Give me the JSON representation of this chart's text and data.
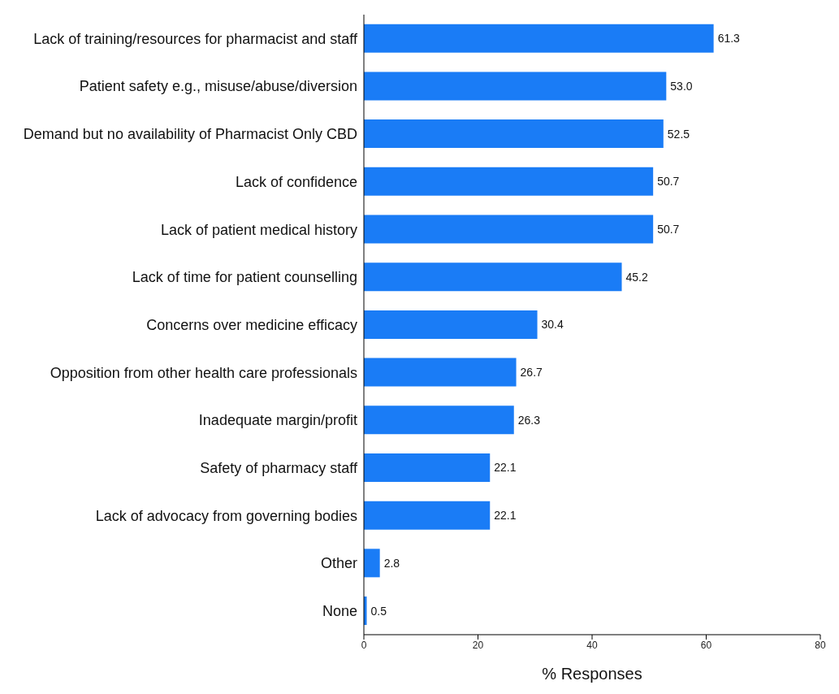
{
  "chart_data": {
    "type": "bar",
    "orientation": "horizontal",
    "xlabel": "% Responses",
    "categories": [
      "Lack of training/resources for pharmacist and staff",
      "Patient safety e.g., misuse/abuse/diversion",
      "Demand but no availability of Pharmacist Only CBD",
      "Lack of confidence",
      "Lack of patient medical history",
      "Lack of time for patient counselling",
      "Concerns over medicine efficacy",
      "Opposition from other health care professionals",
      "Inadequate margin/profit",
      "Safety of pharmacy staff",
      "Lack of advocacy from governing bodies",
      "Other",
      "None"
    ],
    "values": [
      61.3,
      53.0,
      52.5,
      50.7,
      50.7,
      45.2,
      30.4,
      26.7,
      26.3,
      22.1,
      22.1,
      2.8,
      0.5
    ],
    "value_labels": [
      "61.3",
      "53.0",
      "52.5",
      "50.7",
      "50.7",
      "45.2",
      "30.4",
      "26.7",
      "26.3",
      "22.1",
      "22.1",
      "2.8",
      "0.5"
    ],
    "color": "#1a7cf6",
    "xlim": [
      0,
      80
    ],
    "xticks": [
      0,
      20,
      40,
      60,
      80
    ],
    "grid": false,
    "legend": false
  }
}
